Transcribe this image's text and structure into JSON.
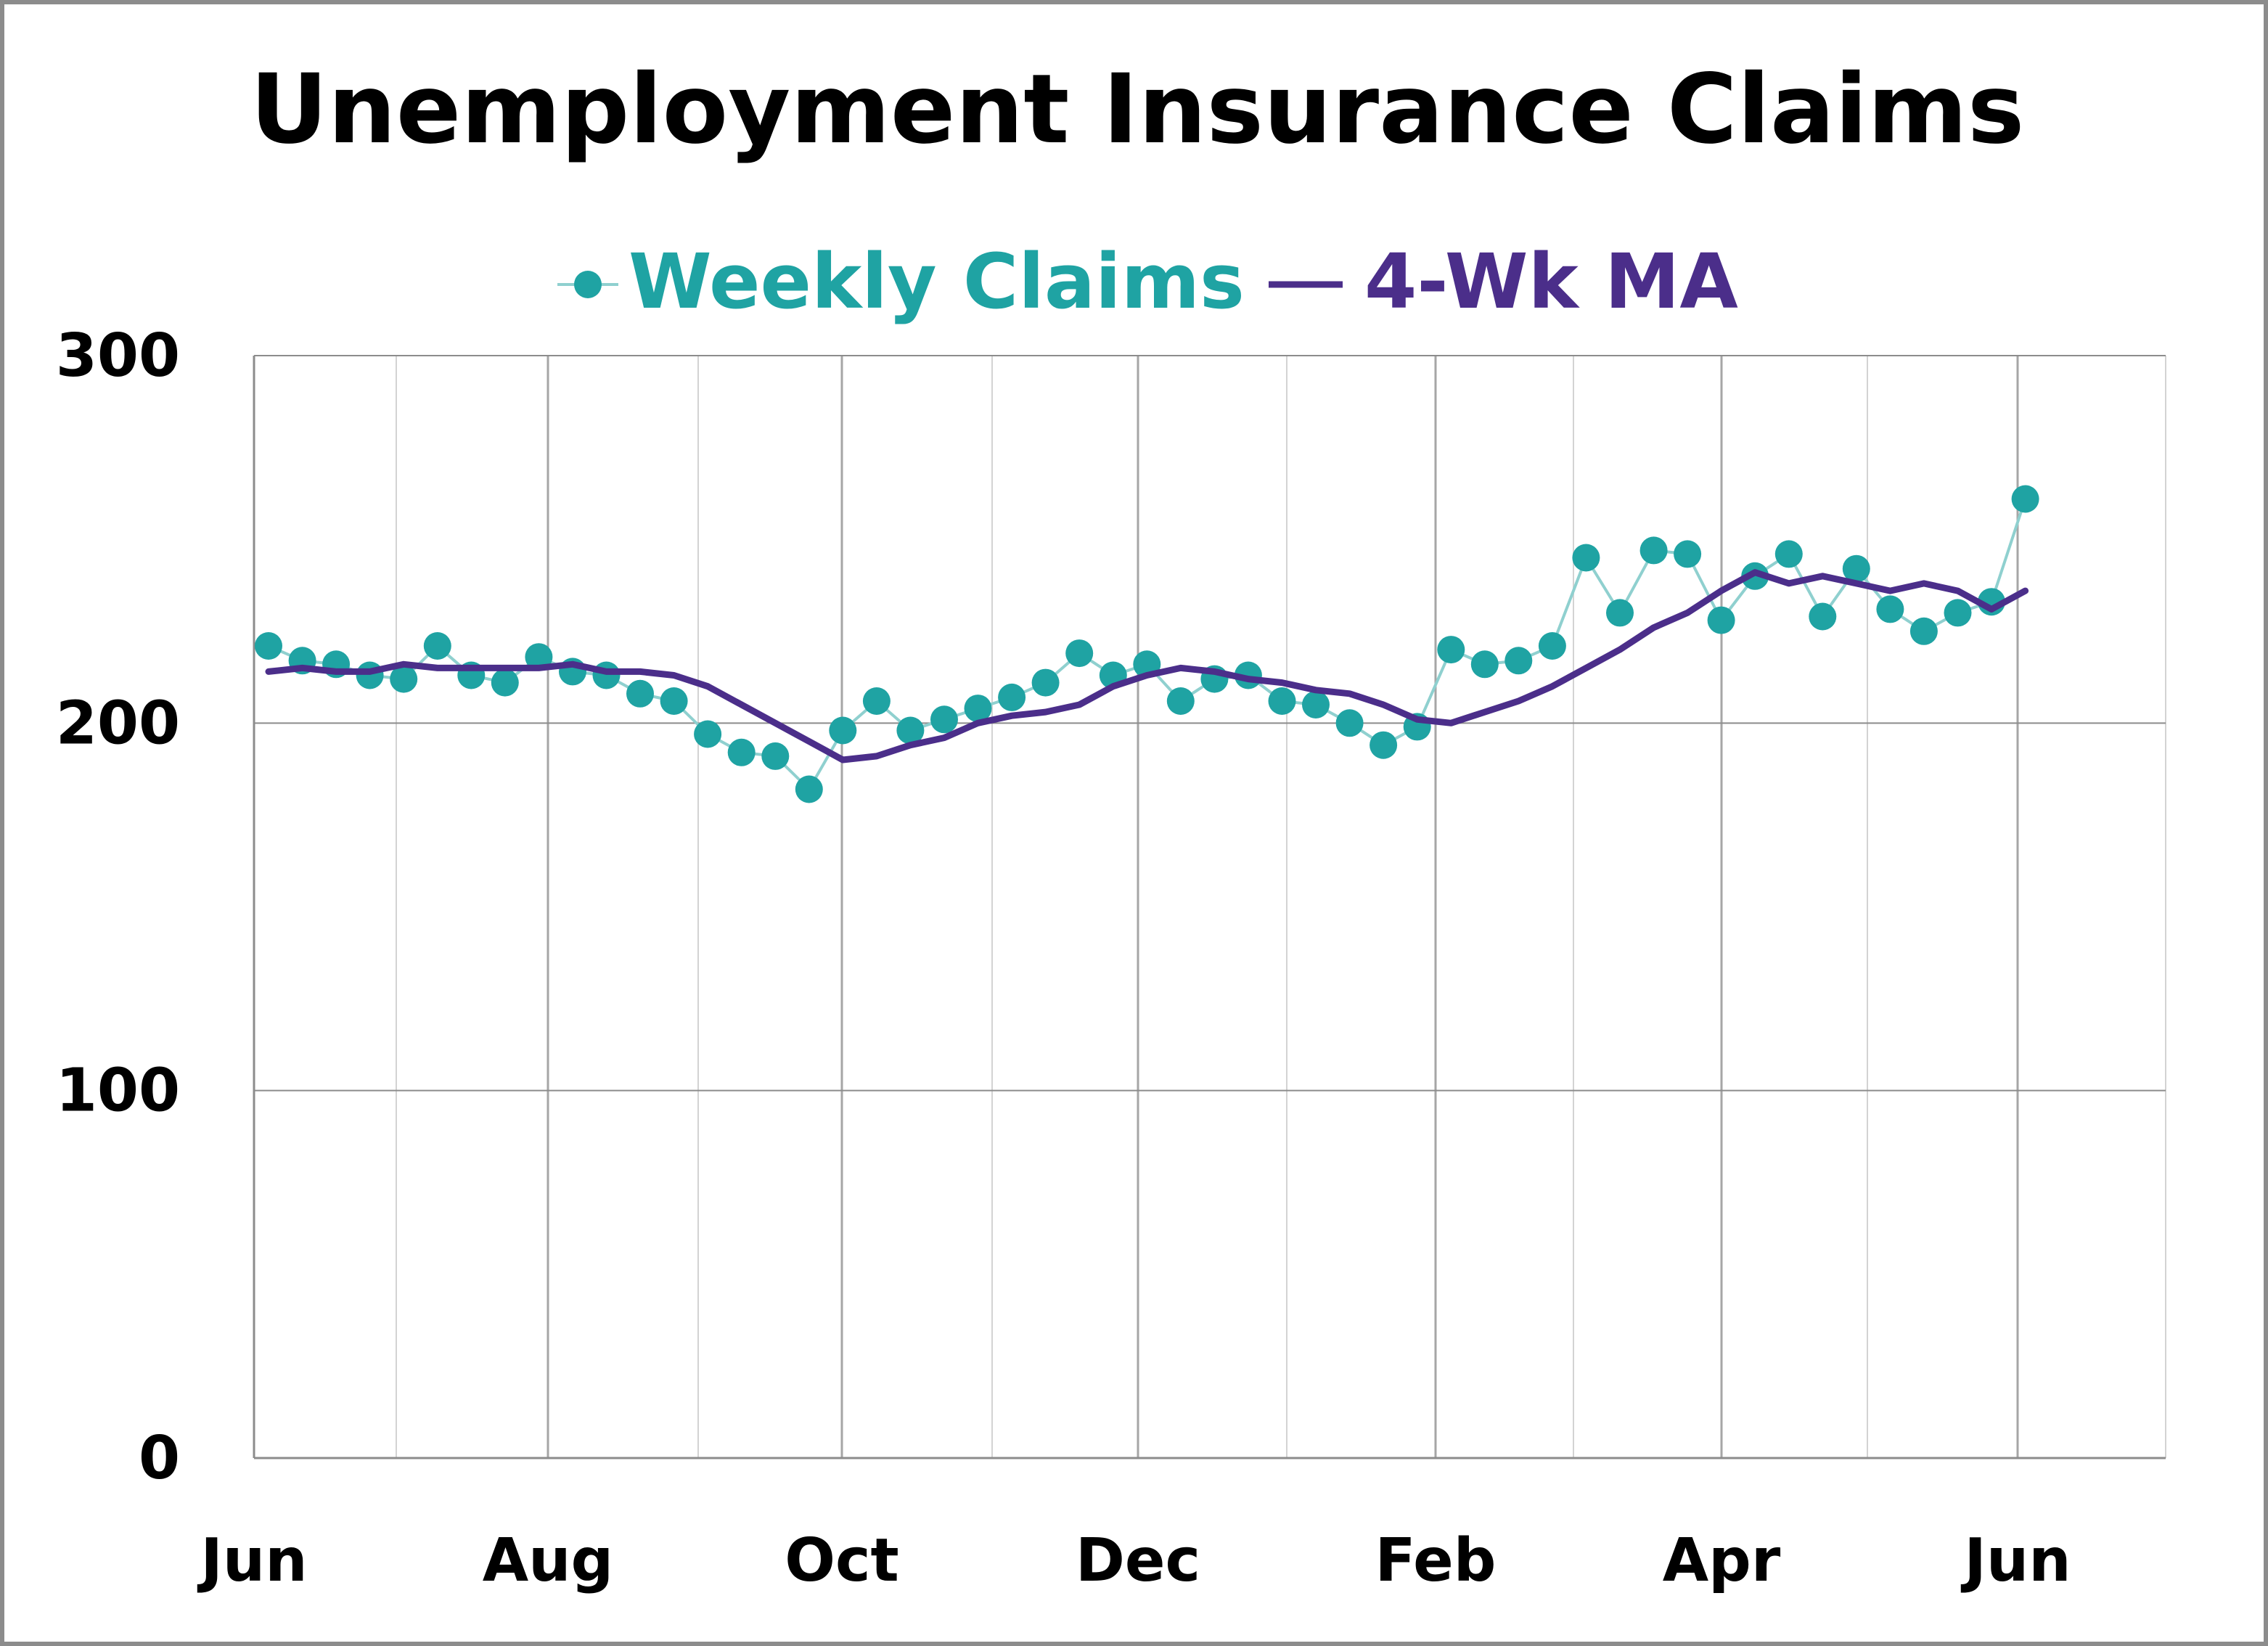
{
  "chart_data": {
    "type": "line",
    "title": "Unemployment Insurance Claims",
    "xlabel": "",
    "ylabel": "",
    "ylim": [
      0,
      300
    ],
    "yticks": [
      "0",
      "100",
      "200",
      "300"
    ],
    "xticks": [
      "Jun",
      "Aug",
      "Oct",
      "Dec",
      "Feb",
      "Apr",
      "Jun"
    ],
    "grid": true,
    "legend_position": "top-center",
    "series": [
      {
        "name": "Weekly Claims",
        "style": "line-markers",
        "color": "#1fa3a3",
        "line_color": "#8fd0cf",
        "x_week": [
          0,
          1,
          2,
          3,
          4,
          5,
          6,
          7,
          8,
          9,
          10,
          11,
          12,
          13,
          14,
          15,
          16,
          17,
          18,
          19,
          20,
          21,
          22,
          23,
          24,
          25,
          26,
          27,
          28,
          29,
          30,
          31,
          32,
          33,
          34,
          35,
          36,
          37,
          38,
          39,
          40,
          41,
          42,
          43,
          44,
          45,
          46,
          47,
          48,
          49,
          50,
          51,
          52
        ],
        "values": [
          221,
          217,
          216,
          213,
          212,
          221,
          213,
          211,
          218,
          214,
          213,
          208,
          206,
          197,
          192,
          191,
          182,
          198,
          206,
          198,
          201,
          204,
          207,
          211,
          219,
          213,
          216,
          206,
          212,
          213,
          206,
          205,
          200,
          194,
          199,
          220,
          216,
          217,
          221,
          245,
          230,
          247,
          246,
          228,
          240,
          246,
          229,
          242,
          231,
          225,
          230,
          233,
          261
        ]
      },
      {
        "name": "4-Wk MA",
        "style": "line",
        "color": "#4b2e8a",
        "x_week": [
          0,
          1,
          2,
          3,
          4,
          5,
          6,
          7,
          8,
          9,
          10,
          11,
          12,
          13,
          14,
          15,
          16,
          17,
          18,
          19,
          20,
          21,
          22,
          23,
          24,
          25,
          26,
          27,
          28,
          29,
          30,
          31,
          32,
          33,
          34,
          35,
          36,
          37,
          38,
          39,
          40,
          41,
          42,
          43,
          44,
          45,
          46,
          47,
          48,
          49,
          50,
          51,
          52
        ],
        "values": [
          214,
          215,
          214,
          214,
          216,
          215,
          215,
          215,
          215,
          216,
          214,
          214,
          213,
          210,
          205,
          200,
          195,
          190,
          191,
          194,
          196,
          200,
          202,
          203,
          205,
          210,
          213,
          215,
          214,
          212,
          211,
          209,
          208,
          205,
          201,
          200,
          203,
          206,
          210,
          215,
          220,
          226,
          230,
          236,
          241,
          238,
          240,
          238,
          236,
          238,
          236,
          231,
          236
        ]
      }
    ]
  }
}
